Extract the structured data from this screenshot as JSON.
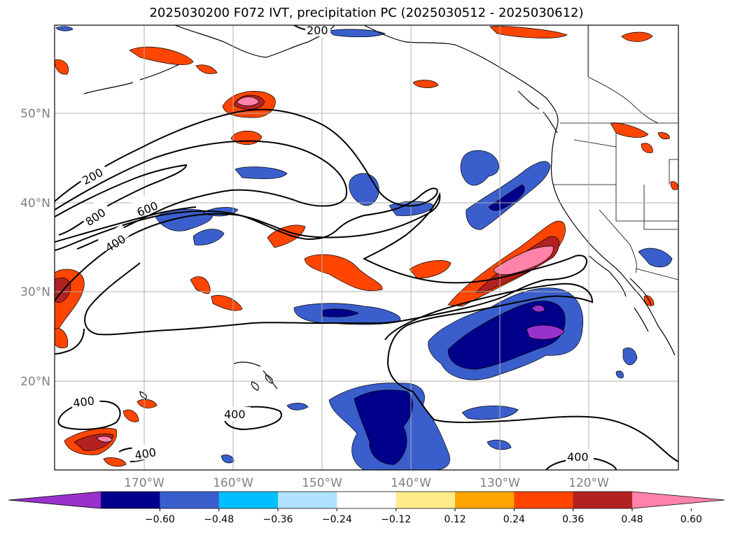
{
  "title": "2025030200 F072 IVT, precipitation PC (2025030512 - 2025030612)",
  "lat_labels": [
    "50°N",
    "40°N",
    "30°N",
    "20°N"
  ],
  "lon_labels": [
    "170°W",
    "160°W",
    "150°W",
    "140°W",
    "130°W",
    "120°W"
  ],
  "contour_labels": [
    "200",
    "800",
    "600",
    "400",
    "400",
    "400",
    "400",
    "400",
    "200"
  ],
  "colorbar": {
    "ticks": [
      "−0.60",
      "−0.48",
      "−0.36",
      "−0.24",
      "−0.12",
      "0.12",
      "0.24",
      "0.36",
      "0.48",
      "0.60"
    ],
    "colors": [
      "#9932cc",
      "#00008b",
      "#3a5fcd",
      "#00bfff",
      "#b0e2ff",
      "#ffffff",
      "#ffec8b",
      "#ffa500",
      "#ff4500",
      "#b22222",
      "#ff82ab"
    ]
  }
}
